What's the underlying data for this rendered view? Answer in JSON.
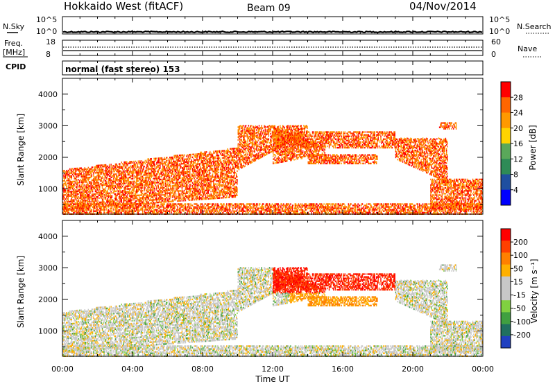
{
  "header": {
    "title": "Hokkaido West (fitACF)",
    "beam": "Beam 09",
    "date": "04/Nov/2014"
  },
  "top_panels": {
    "nsky_label": "N.Sky",
    "nsearch_label": "N.Search",
    "nsky_ticks": [
      "10^5",
      "10^0"
    ],
    "nsearch_ticks": [
      "10^5",
      "10^0"
    ],
    "freq_label_1": "Freq.",
    "freq_label_2": "[MHz]",
    "freq_ticks": [
      "18",
      "8"
    ],
    "nave_label": "Nave",
    "nave_ticks": [
      "60",
      "0"
    ],
    "cpid_label": "CPID",
    "cpid_text": "normal (fast stereo) 153"
  },
  "colors": {
    "power_scale": [
      "#0000ff",
      "#1f4fa0",
      "#2e8b57",
      "#5aa85a",
      "#ffd400",
      "#ff9900",
      "#ff6600",
      "#ff0000"
    ],
    "velocity_scale": [
      "#2040c0",
      "#207060",
      "#40a040",
      "#80d040",
      "#c8c8c8",
      "#c8c8c8",
      "#ffb000",
      "#ff8000",
      "#ff4000",
      "#ff0000"
    ]
  },
  "chart_data": [
    {
      "type": "heatmap",
      "name": "power-panel",
      "ylabel": "Slant Range [km]",
      "yticks": [
        "4000",
        "3000",
        "2000",
        "1000"
      ],
      "ylim": [
        200,
        4500
      ],
      "xlim_hours": [
        0,
        24
      ],
      "colorbar_label": "Power [dB]",
      "colorbar_ticks": [
        "28",
        "24",
        "20",
        "16",
        "12",
        "8",
        "4"
      ],
      "colorbar_range": [
        0,
        32
      ]
    },
    {
      "type": "heatmap",
      "name": "velocity-panel",
      "ylabel": "Slant Range [km]",
      "yticks": [
        "4000",
        "3000",
        "2000",
        "1000"
      ],
      "ylim": [
        200,
        4500
      ],
      "xlim_hours": [
        0,
        24
      ],
      "colorbar_label": "Velocity [m s⁻¹]",
      "colorbar_ticks": [
        "200",
        "100",
        "50",
        "15",
        "-15",
        "-50",
        "-100",
        "-200"
      ]
    }
  ],
  "xaxis": {
    "ticks": [
      "00:00",
      "04:00",
      "08:00",
      "12:00",
      "16:00",
      "20:00",
      "00:00"
    ],
    "label": "Time UT"
  }
}
